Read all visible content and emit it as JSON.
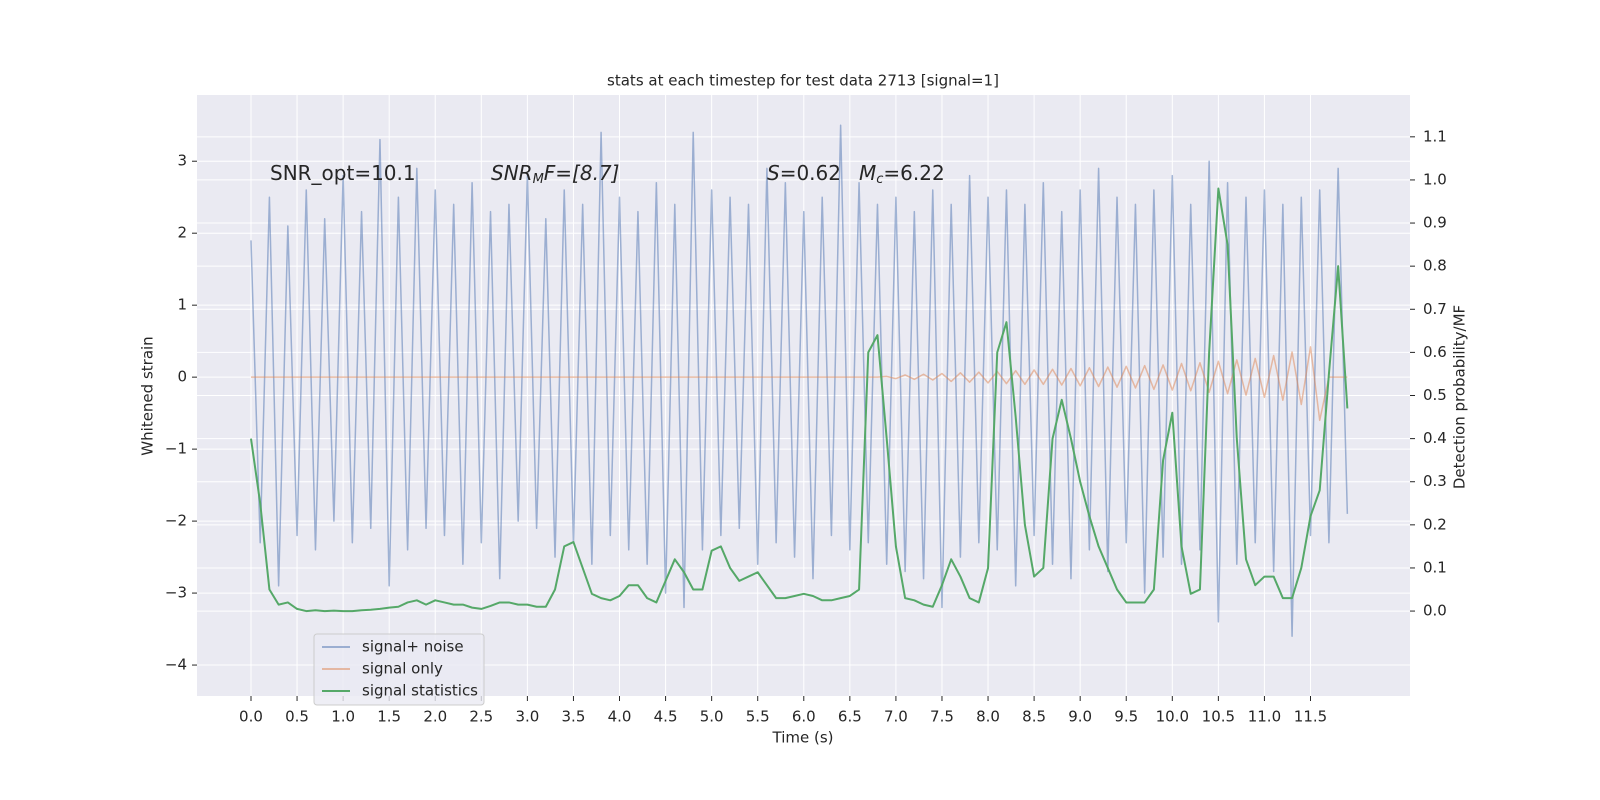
{
  "chart_data": {
    "type": "line",
    "title": "stats at each timestep for test data 2713 [signal=1]",
    "xlabel": "Time (s)",
    "ylabel": "Whitened strain",
    "y2label": "Detection probability/MF",
    "annotations": [
      [
        "SNR_opt=10.1"
      ],
      [
        "SNR",
        "M",
        "F=[8.7]"
      ],
      [
        "S",
        "=0.62"
      ],
      [
        "M",
        "c",
        "=6.22"
      ]
    ],
    "grid": true,
    "legend": "lower left",
    "xlim": [
      -0.586,
      12.58
    ],
    "ylim": [
      -4.43,
      3.92
    ],
    "y2lim": [
      -0.197,
      1.197
    ],
    "xticks": [
      {
        "value": 0,
        "label": "0.0"
      },
      0.5,
      {
        "value": 1,
        "label": "1.0"
      },
      1.5,
      {
        "value": 2,
        "label": "2.0"
      },
      2.5,
      {
        "value": 3,
        "label": "3.0"
      },
      3.5,
      {
        "value": 4,
        "label": "4.0"
      },
      4.5,
      {
        "value": 5,
        "label": "5.0"
      },
      5.5,
      {
        "value": 6,
        "label": "6.0"
      },
      6.5,
      {
        "value": 7,
        "label": "7.0"
      },
      7.5,
      {
        "value": 8,
        "label": "8.0"
      },
      8.5,
      {
        "value": 9,
        "label": "9.0"
      },
      9.5,
      {
        "value": 10,
        "label": "10.0"
      },
      10.5,
      {
        "value": 11,
        "label": "11.0"
      },
      11.5
    ],
    "yticks": [
      {
        "value": -4,
        "label": "−4"
      },
      {
        "value": -3,
        "label": "−3"
      },
      {
        "value": -2,
        "label": "−2"
      },
      {
        "value": -1,
        "label": "−1"
      },
      0,
      1,
      2,
      3
    ],
    "y2ticks": [
      {
        "value": 0,
        "label": "0.0"
      },
      0.1,
      0.2,
      0.3,
      0.4,
      0.5,
      0.6,
      0.7,
      0.8,
      0.9,
      {
        "value": 1,
        "label": "1.0"
      },
      1.1
    ],
    "x": [
      0,
      0.1,
      0.2,
      0.3,
      0.4,
      0.5,
      0.6,
      0.7,
      0.8,
      0.9,
      1,
      1.1,
      1.2,
      1.3,
      1.4,
      1.5,
      1.6,
      1.7,
      1.8,
      1.9,
      2,
      2.1,
      2.2,
      2.3,
      2.4,
      2.5,
      2.6,
      2.7,
      2.8,
      2.9,
      3,
      3.1,
      3.2,
      3.3,
      3.4,
      3.5,
      3.6,
      3.7,
      3.8,
      3.9,
      4,
      4.1,
      4.2,
      4.3,
      4.4,
      4.5,
      4.6,
      4.7,
      4.8,
      4.9,
      5,
      5.1,
      5.2,
      5.3,
      5.4,
      5.5,
      5.6,
      5.7,
      5.8,
      5.9,
      6,
      6.1,
      6.2,
      6.3,
      6.4,
      6.5,
      6.6,
      6.7,
      6.8,
      6.9,
      7,
      7.1,
      7.2,
      7.3,
      7.4,
      7.5,
      7.6,
      7.7,
      7.8,
      7.9,
      8,
      8.1,
      8.2,
      8.3,
      8.4,
      8.5,
      8.6,
      8.7,
      8.8,
      8.9,
      9,
      9.1,
      9.2,
      9.3,
      9.4,
      9.5,
      9.6,
      9.7,
      9.8,
      9.9,
      10,
      10.1,
      10.2,
      10.3,
      10.4,
      10.5,
      10.6,
      10.7,
      10.8,
      10.9,
      11,
      11.1,
      11.2,
      11.3,
      11.4,
      11.5,
      11.6,
      11.7,
      11.8,
      11.9
    ],
    "series": [
      {
        "name": "signal+ noise",
        "color": "#4c72b0",
        "values": [
          1.9,
          -2.3,
          2.5,
          -2.9,
          2.1,
          -2.2,
          2.6,
          -2.4,
          2.2,
          -2.0,
          2.8,
          -2.3,
          2.3,
          -2.1,
          3.3,
          -2.9,
          2.5,
          -2.4,
          2.9,
          -2.1,
          2.6,
          -2.2,
          2.4,
          -2.6,
          2.7,
          -2.3,
          2.3,
          -2.8,
          2.4,
          -2.0,
          2.8,
          -2.1,
          2.2,
          -2.5,
          2.6,
          -2.3,
          2.4,
          -2.6,
          3.4,
          -2.2,
          2.5,
          -2.4,
          2.3,
          -2.6,
          2.7,
          -3.0,
          2.4,
          -3.2,
          3.4,
          -2.4,
          2.6,
          -2.2,
          2.5,
          -2.1,
          2.4,
          -2.6,
          2.9,
          -2.3,
          2.7,
          -2.5,
          2.3,
          -2.8,
          2.5,
          -2.2,
          3.5,
          -2.4,
          2.7,
          -2.3,
          2.4,
          -2.6,
          2.5,
          -2.7,
          2.3,
          -2.8,
          2.6,
          -3.2,
          2.4,
          -2.5,
          2.8,
          -2.3,
          2.5,
          -2.4,
          2.6,
          -2.9,
          2.4,
          -2.2,
          2.7,
          -2.6,
          2.3,
          -2.8,
          2.6,
          -2.4,
          2.9,
          -2.7,
          2.5,
          -2.3,
          2.4,
          -3.0,
          2.6,
          -2.5,
          2.8,
          -2.6,
          2.4,
          -2.4,
          3.0,
          -3.4,
          2.7,
          -2.6,
          2.5,
          -2.3,
          2.6,
          -2.7,
          2.4,
          -3.6,
          2.5,
          -2.2,
          2.6,
          -2.3,
          2.9,
          -1.9
        ]
      },
      {
        "name": "signal only",
        "color": "#dd8452",
        "values": [
          0,
          0,
          0,
          0,
          0,
          0,
          0,
          0,
          0,
          0,
          0,
          0,
          0,
          0,
          0,
          0,
          0,
          0,
          0,
          0,
          0,
          0,
          0,
          0,
          0,
          0,
          0,
          0,
          0,
          0,
          0,
          0,
          0,
          0,
          0,
          0,
          0,
          0,
          0,
          0,
          0,
          0,
          0,
          0,
          0,
          0,
          0,
          0,
          0,
          0,
          0,
          0,
          0,
          0,
          0,
          0,
          0,
          0,
          0,
          0,
          0,
          0,
          0,
          0,
          0,
          0,
          0,
          0,
          0,
          0.01,
          -0.02,
          0.03,
          -0.03,
          0.04,
          -0.04,
          0.05,
          -0.06,
          0.06,
          -0.07,
          0.07,
          -0.08,
          0.08,
          -0.09,
          0.09,
          -0.1,
          0.1,
          -0.1,
          0.11,
          -0.11,
          0.12,
          -0.12,
          0.13,
          -0.13,
          0.14,
          -0.14,
          0.15,
          -0.15,
          0.16,
          -0.17,
          0.17,
          -0.18,
          0.19,
          -0.19,
          0.2,
          -0.21,
          0.22,
          -0.23,
          0.24,
          -0.25,
          0.26,
          -0.28,
          0.3,
          -0.32,
          0.35,
          -0.38,
          0.42,
          -0.6,
          0,
          0,
          0
        ]
      },
      {
        "name": "signal statistics",
        "color": "#55a868",
        "axis": "y2",
        "values": [
          0.4,
          0.25,
          0.05,
          0.015,
          0.02,
          0.005,
          0,
          0.002,
          0,
          0.001,
          0,
          0,
          0.002,
          0.003,
          0.005,
          0.008,
          0.01,
          0.02,
          0.025,
          0.015,
          0.025,
          0.02,
          0.015,
          0.015,
          0.008,
          0.005,
          0.012,
          0.02,
          0.02,
          0.015,
          0.015,
          0.01,
          0.01,
          0.05,
          0.15,
          0.16,
          0.1,
          0.04,
          0.03,
          0.025,
          0.035,
          0.06,
          0.06,
          0.03,
          0.02,
          0.07,
          0.12,
          0.09,
          0.05,
          0.05,
          0.14,
          0.15,
          0.1,
          0.07,
          0.08,
          0.09,
          0.06,
          0.03,
          0.03,
          0.035,
          0.04,
          0.035,
          0.025,
          0.025,
          0.03,
          0.035,
          0.05,
          0.6,
          0.64,
          0.4,
          0.15,
          0.03,
          0.025,
          0.015,
          0.01,
          0.06,
          0.12,
          0.08,
          0.03,
          0.02,
          0.1,
          0.6,
          0.67,
          0.45,
          0.2,
          0.08,
          0.1,
          0.4,
          0.49,
          0.4,
          0.3,
          0.22,
          0.15,
          0.1,
          0.05,
          0.02,
          0.02,
          0.02,
          0.05,
          0.35,
          0.46,
          0.15,
          0.04,
          0.05,
          0.6,
          0.98,
          0.85,
          0.4,
          0.12,
          0.06,
          0.08,
          0.08,
          0.03,
          0.03,
          0.1,
          0.22,
          0.28,
          0.55,
          0.8,
          0.47
        ]
      }
    ]
  }
}
